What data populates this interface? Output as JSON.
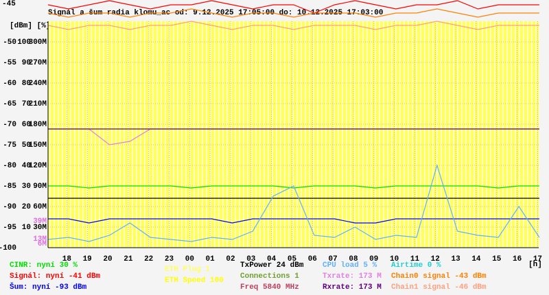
{
  "chart_data": {
    "type": "line",
    "title": "Signál a šum radia klomu_ac od: 9.12.2025 17:05:00 do: 10.12.2025 17:03:00",
    "top_label": "-45",
    "y_units": "[dBm] [%]",
    "x_units": "[h]",
    "x": [
      0,
      1,
      2,
      3,
      4,
      5,
      6,
      7,
      8,
      9,
      10,
      11,
      12,
      13,
      14,
      15,
      16,
      17,
      18,
      19,
      20,
      21,
      22,
      23,
      24
    ],
    "xlim": [
      0,
      23.97
    ],
    "xticks": [
      {
        "value": 0.917,
        "label": "18"
      },
      {
        "value": 1.917,
        "label": "19"
      },
      {
        "value": 2.917,
        "label": "20"
      },
      {
        "value": 3.917,
        "label": "21"
      },
      {
        "value": 4.917,
        "label": "22"
      },
      {
        "value": 5.917,
        "label": "23"
      },
      {
        "value": 6.917,
        "label": "00"
      },
      {
        "value": 7.917,
        "label": "01"
      },
      {
        "value": 8.917,
        "label": "02"
      },
      {
        "value": 9.917,
        "label": "03"
      },
      {
        "value": 10.917,
        "label": "04"
      },
      {
        "value": 11.917,
        "label": "05"
      },
      {
        "value": 12.917,
        "label": "06"
      },
      {
        "value": 13.917,
        "label": "07"
      },
      {
        "value": 14.917,
        "label": "08"
      },
      {
        "value": 15.917,
        "label": "09"
      },
      {
        "value": 16.917,
        "label": "10"
      },
      {
        "value": 17.917,
        "label": "11"
      },
      {
        "value": 18.917,
        "label": "12"
      },
      {
        "value": 19.917,
        "label": "13"
      },
      {
        "value": 20.917,
        "label": "14"
      },
      {
        "value": 21.917,
        "label": "15"
      },
      {
        "value": 22.917,
        "label": "16"
      },
      {
        "value": 23.917,
        "label": "17"
      }
    ],
    "ylim": [
      -100,
      -45
    ],
    "yticks": [
      -50,
      -55,
      -60,
      -65,
      -70,
      -75,
      -80,
      -85,
      -90,
      -95,
      -100
    ],
    "y2lim": [
      0,
      110
    ],
    "y2ticks": [
      100,
      90,
      80,
      70,
      60,
      50,
      40,
      30,
      20,
      10
    ],
    "y3lim": [
      0,
      330
    ],
    "y3ticks": [
      {
        "value": 300,
        "label": "300M"
      },
      {
        "value": 270,
        "label": "270M"
      },
      {
        "value": 240,
        "label": "240M"
      },
      {
        "value": 210,
        "label": "210M"
      },
      {
        "value": 180,
        "label": "180M"
      },
      {
        "value": 150,
        "label": "150M"
      },
      {
        "value": 120,
        "label": "120M"
      },
      {
        "value": 90,
        "label": "90M"
      },
      {
        "value": 60,
        "label": "60M"
      },
      {
        "value": 30,
        "label": "30M"
      }
    ],
    "annotations": [
      {
        "label": "39M",
        "value": 39
      },
      {
        "label": "13M",
        "value": 13
      },
      {
        "label": "6M",
        "value": 6
      }
    ],
    "annotation_color": "#e070e0",
    "background_color": "#ffff60",
    "grid": true,
    "series": [
      {
        "name": "CINR: nyní 30 %",
        "color": "#00e000",
        "axis": "y2",
        "values": [
          30,
          30,
          29,
          30,
          30,
          30,
          30,
          29,
          30,
          30,
          30,
          30,
          29,
          30,
          30,
          30,
          29,
          30,
          30,
          30,
          30,
          30,
          29,
          30,
          30
        ]
      },
      {
        "name": "Signál: nyní -41 dBm",
        "color": "#ff0000",
        "axis": "y",
        "values": [
          -41,
          -42,
          -41,
          -40,
          -41,
          -42,
          -41,
          -41,
          -40,
          -41,
          -42,
          -41,
          -41,
          -43,
          -41,
          -40,
          -41,
          -42,
          -41,
          -41,
          -40,
          -42,
          -41,
          -41,
          -41
        ]
      },
      {
        "name": "Šum: nyní -93 dBm",
        "color": "#0000ff",
        "axis": "y",
        "values": [
          -93,
          -93,
          -94,
          -93,
          -93,
          -93,
          -93,
          -93,
          -93,
          -94,
          -93,
          -93,
          -93,
          -93,
          -93,
          -94,
          -94,
          -93,
          -93,
          -93,
          -93,
          -93,
          -93,
          -93,
          -93
        ]
      },
      {
        "name": "ETH Plug 1",
        "color": "#ffff60"
      },
      {
        "name": "ETH Speed 100",
        "color": "#ffff00"
      },
      {
        "name": "TxPower 24 dBm",
        "color": "#000000",
        "axis": "y2",
        "values": [
          24,
          24,
          24,
          24,
          24,
          24,
          24,
          24,
          24,
          24,
          24,
          24,
          24,
          24,
          24,
          24,
          24,
          24,
          24,
          24,
          24,
          24,
          24,
          24,
          24
        ]
      },
      {
        "name": "Connections 1",
        "color": "#70a030"
      },
      {
        "name": "Freq 5840 MHz",
        "color": "#c04060"
      },
      {
        "name": "CPU load 5 %",
        "color": "#60b0ff",
        "axis": "y2",
        "values": [
          4,
          5,
          3,
          6,
          12,
          5,
          4,
          3,
          5,
          4,
          8,
          25,
          30,
          6,
          5,
          10,
          4,
          6,
          5,
          40,
          8,
          6,
          5,
          20,
          5
        ]
      },
      {
        "name": "Txrate: 173 M",
        "color": "#e080e0",
        "axis": "y3",
        "values": [
          173,
          173,
          173,
          150,
          155,
          173,
          173,
          173,
          173,
          173,
          173,
          173,
          173,
          173,
          173,
          173,
          173,
          173,
          173,
          173,
          173,
          173,
          173,
          173,
          173
        ]
      },
      {
        "name": "Rxrate: 173 M",
        "color": "#600080",
        "axis": "y3",
        "values": [
          173,
          173,
          173,
          173,
          173,
          173,
          173,
          173,
          173,
          173,
          173,
          173,
          173,
          173,
          173,
          173,
          173,
          173,
          173,
          173,
          173,
          173,
          173,
          173,
          173
        ]
      },
      {
        "name": "Airtime 0 %",
        "color": "#20d0d0"
      },
      {
        "name": "Chain0 signal -43 dBm",
        "color": "#ff8000",
        "axis": "y",
        "values": [
          -43,
          -44,
          -43,
          -43,
          -44,
          -43,
          -43,
          -42,
          -43,
          -44,
          -43,
          -43,
          -44,
          -43,
          -43,
          -43,
          -44,
          -43,
          -43,
          -42,
          -43,
          -44,
          -43,
          -43,
          -43
        ]
      },
      {
        "name": "Chain1 signal -46 dBm",
        "color": "#ffa080",
        "axis": "y",
        "values": [
          -46,
          -47,
          -46,
          -46,
          -47,
          -46,
          -46,
          -45,
          -46,
          -47,
          -46,
          -46,
          -47,
          -46,
          -46,
          -46,
          -47,
          -46,
          -46,
          -45,
          -46,
          -47,
          -46,
          -46,
          -46
        ]
      }
    ]
  }
}
